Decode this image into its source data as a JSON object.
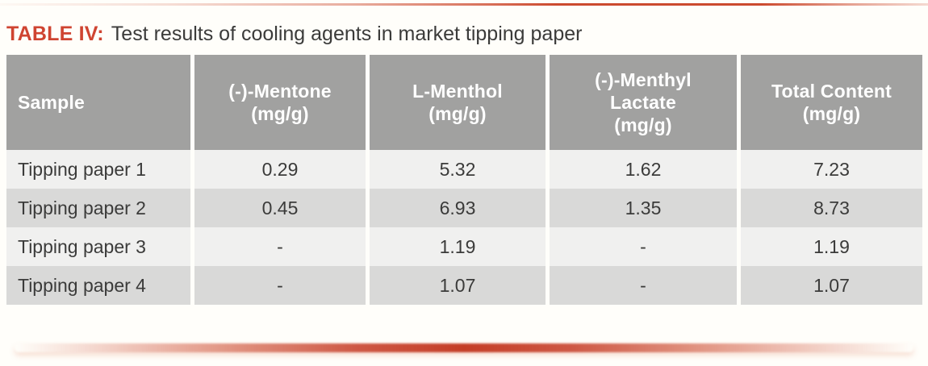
{
  "title": {
    "label": "TABLE IV:",
    "text": "Test results of cooling agents in market tipping paper"
  },
  "table": {
    "columns": [
      {
        "key": "sample",
        "header": "Sample"
      },
      {
        "key": "mentone",
        "header": "(-)-Mentone\n(mg/g)"
      },
      {
        "key": "l_menthol",
        "header": "L-Menthol\n(mg/g)"
      },
      {
        "key": "menthyl_lactate",
        "header": "(-)-Menthyl\nLactate\n(mg/g)"
      },
      {
        "key": "total_content",
        "header": "Total Content\n(mg/g)"
      }
    ],
    "rows": [
      [
        "Tipping paper 1",
        "0.29",
        "5.32",
        "1.62",
        "7.23"
      ],
      [
        "Tipping paper 2",
        "0.45",
        "6.93",
        "1.35",
        "8.73"
      ],
      [
        "Tipping paper 3",
        "-",
        "1.19",
        "-",
        "1.19"
      ],
      [
        "Tipping paper 4",
        "-",
        "1.07",
        "-",
        "1.07"
      ]
    ]
  },
  "colors": {
    "accent_red": "#cf4431",
    "rule_red": "#c43d26",
    "header_gray": "#a1a1a0",
    "row_light": "#f0f0ef",
    "row_dark": "#d9d9d8",
    "text_dark": "#3b3b3a",
    "background": "#fffefa"
  }
}
